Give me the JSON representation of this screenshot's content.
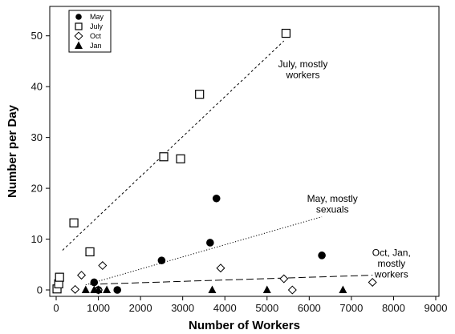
{
  "chart_data": {
    "type": "scatter",
    "xlabel": "Number of Workers",
    "ylabel": "Number per Day",
    "xlim": [
      0,
      9000
    ],
    "ylim": [
      0,
      55
    ],
    "xticks": [
      0,
      1000,
      2000,
      3000,
      4000,
      5000,
      6000,
      7000,
      8000,
      9000
    ],
    "yticks": [
      0,
      10,
      20,
      30,
      40,
      50
    ],
    "grid": false,
    "legend_position": "top-left",
    "series": [
      {
        "name": "May",
        "marker": "filled-circle",
        "points": [
          [
            900,
            1.5
          ],
          [
            1000,
            0
          ],
          [
            1450,
            0
          ],
          [
            2500,
            5.8
          ],
          [
            3650,
            9.3
          ],
          [
            3800,
            18
          ],
          [
            6300,
            6.8
          ]
        ]
      },
      {
        "name": "July",
        "marker": "open-square",
        "points": [
          [
            20,
            0.2
          ],
          [
            60,
            1.2
          ],
          [
            80,
            2.5
          ],
          [
            420,
            13.2
          ],
          [
            800,
            7.5
          ],
          [
            2550,
            26.2
          ],
          [
            2950,
            25.8
          ],
          [
            3400,
            38.5
          ],
          [
            5450,
            50.5
          ]
        ]
      },
      {
        "name": "Oct",
        "marker": "open-diamond",
        "points": [
          [
            450,
            0.1
          ],
          [
            600,
            2.9
          ],
          [
            1000,
            0
          ],
          [
            1100,
            4.8
          ],
          [
            3900,
            4.3
          ],
          [
            5400,
            2.2
          ],
          [
            5600,
            0
          ],
          [
            7500,
            1.5
          ]
        ]
      },
      {
        "name": "Jan",
        "marker": "filled-triangle",
        "points": [
          [
            700,
            0
          ],
          [
            900,
            0
          ],
          [
            1000,
            0
          ],
          [
            1200,
            0
          ],
          [
            3700,
            0
          ],
          [
            5000,
            0
          ],
          [
            6800,
            0
          ]
        ]
      }
    ],
    "trendlines": [
      {
        "style": "dashed",
        "from": [
          150,
          7.8
        ],
        "to": [
          5400,
          49
        ]
      },
      {
        "style": "dotted",
        "from": [
          700,
          1
        ],
        "to": [
          6300,
          14.4
        ]
      },
      {
        "style": "longdash",
        "from": [
          800,
          1.1
        ],
        "to": [
          7500,
          2.9
        ]
      }
    ],
    "annotations": [
      {
        "lines": [
          "July, mostly",
          "workers"
        ],
        "anchor_data": [
          5850,
          43.8
        ]
      },
      {
        "lines": [
          "May, mostly",
          "sexuals"
        ],
        "anchor_data": [
          6550,
          17.3
        ]
      },
      {
        "lines": [
          "Oct, Jan,",
          "mostly",
          "workers"
        ],
        "anchor_data": [
          7950,
          6.7
        ]
      }
    ]
  }
}
